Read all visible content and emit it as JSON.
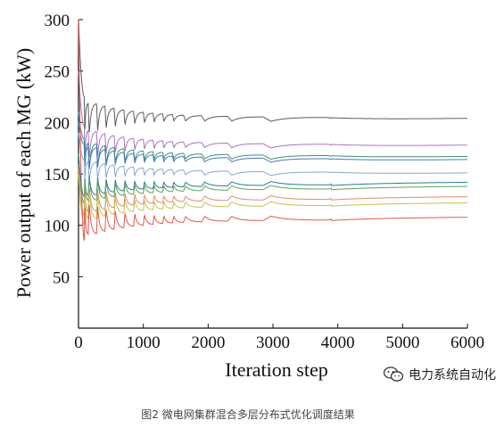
{
  "chart_data": {
    "type": "line",
    "title": "",
    "xlabel": "Iteration step",
    "ylabel": "Power output of each MG (kW)",
    "xlim": [
      0,
      6000
    ],
    "ylim": [
      0,
      300
    ],
    "xticks": [
      0,
      1000,
      2000,
      3000,
      4000,
      5000,
      6000
    ],
    "yticks": [
      50,
      100,
      150,
      200,
      250,
      300
    ],
    "grid": false,
    "legend": "none",
    "oscillation_peaks": [
      150,
      280,
      410,
      550,
      700,
      850,
      1000,
      1150,
      1300,
      1450,
      1620,
      1900,
      2300,
      2850,
      3850
    ],
    "series": [
      {
        "color": "#5c5c5c",
        "start": 300,
        "final": 203
      },
      {
        "color": "#a873c4",
        "start": 250,
        "final": 177
      },
      {
        "color": "#3e8f7a",
        "start": 210,
        "final": 166
      },
      {
        "color": "#4a78b8",
        "start": 200,
        "final": 163
      },
      {
        "color": "#86a8d4",
        "start": 190,
        "final": 150
      },
      {
        "color": "#2e7a99",
        "start": 170,
        "final": 141
      },
      {
        "color": "#5aa55a",
        "start": 160,
        "final": 137
      },
      {
        "color": "#e08a7a",
        "start": 155,
        "final": 127
      },
      {
        "color": "#c8c24a",
        "start": 150,
        "final": 121
      },
      {
        "color": "#e0574c",
        "start": 300,
        "final": 107
      }
    ]
  },
  "watermark": {
    "text": "电力系统自动化"
  },
  "caption": "图2 微电网集群混合多层分布式优化调度结果"
}
